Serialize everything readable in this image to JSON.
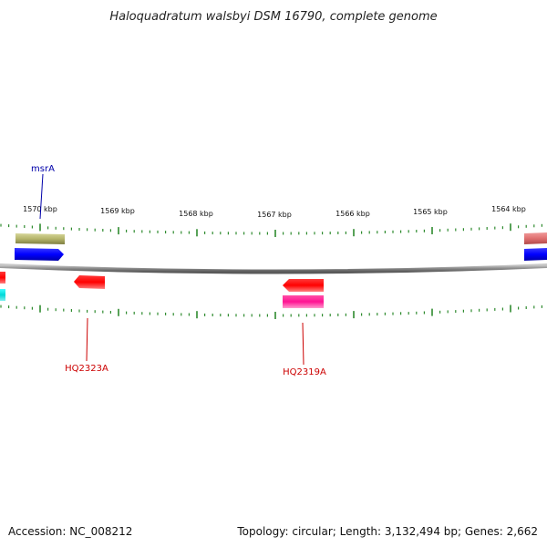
{
  "title": "Haloquadratum walsbyi DSM 16790, complete genome",
  "footer": {
    "accession": "Accession: NC_008212",
    "summary": "Topology: circular; Length: 3,132,494 bp; Genes: 2,662"
  },
  "ruler": {
    "ticks": [
      "1570 kbp",
      "1569 kbp",
      "1568 kbp",
      "1567 kbp",
      "1566 kbp",
      "1565 kbp",
      "1564 kbp"
    ]
  },
  "gene_labels": {
    "msrA": "msrA",
    "hq2323a": "HQ2323A",
    "hq2319a": "HQ2319A"
  },
  "colors": {
    "backbone": "#8a8a8a",
    "tick": "#2e8b2e",
    "label_forward": "#0000aa",
    "label_reverse": "#cc0000",
    "feature_olive": "#b5b56a",
    "feature_blue": "#0000ff",
    "feature_red": "#ff0000",
    "feature_pink": "#ff1493",
    "feature_salmon": "#e07070",
    "feature_cyan": "#00d8d8"
  }
}
